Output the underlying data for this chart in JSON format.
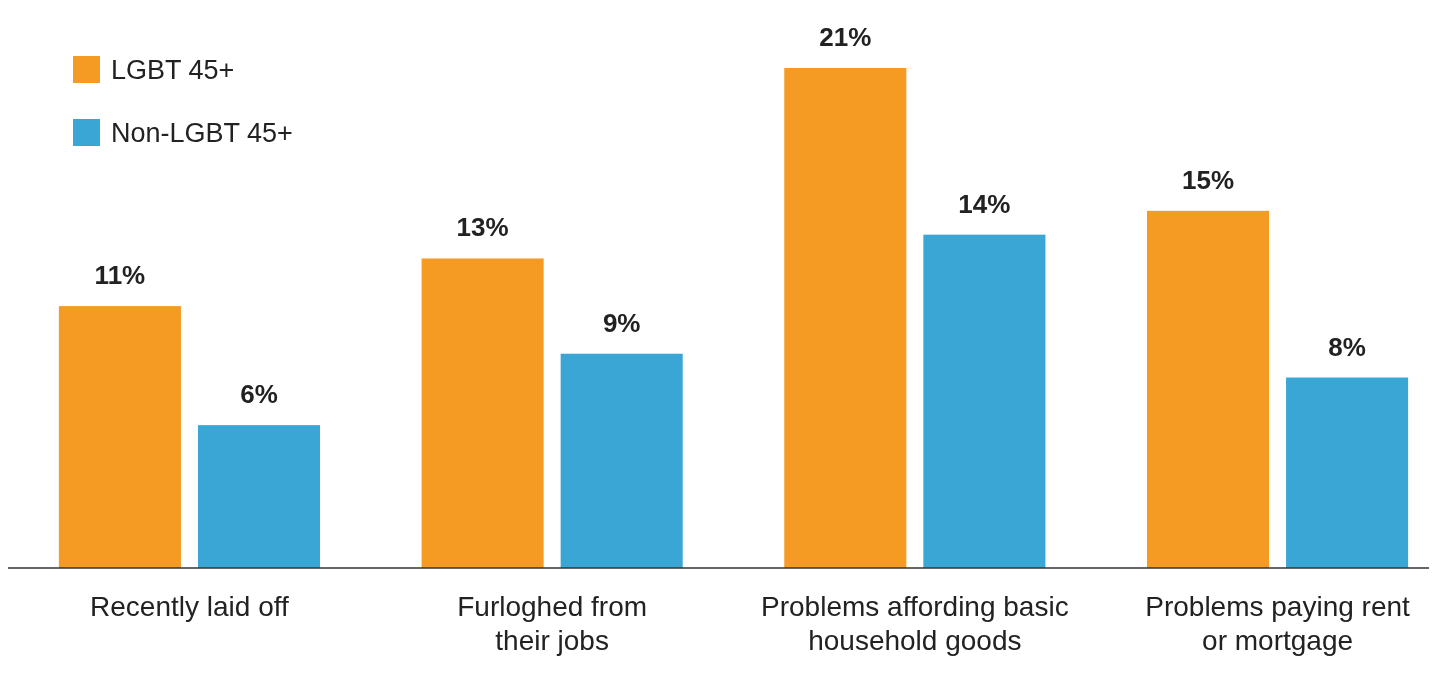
{
  "chart_data": {
    "type": "bar",
    "categories": [
      "Recently laid off",
      "Furloghed from their jobs",
      "Problems affording basic household goods",
      "Problems paying rent or mortgage"
    ],
    "series": [
      {
        "name": "LGBT 45+",
        "color": "#f59a23",
        "values": [
          11,
          13,
          21,
          15
        ],
        "value_labels": [
          "11%",
          "13%",
          "21%",
          "15%"
        ]
      },
      {
        "name": "Non-LGBT 45+",
        "color": "#3aa6d5",
        "values": [
          6,
          9,
          14,
          8
        ],
        "value_labels": [
          "6%",
          "9%",
          "14%",
          "8%"
        ]
      }
    ],
    "legend": "top left"
  }
}
